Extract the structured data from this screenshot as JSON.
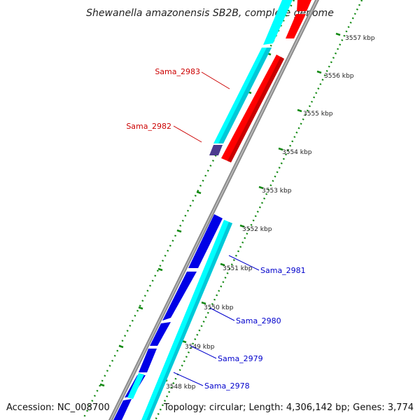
{
  "title": "Shewanella amazonensis SB2B, complete genome",
  "footer": {
    "accession": "Accession: NC_008700",
    "info": "Topology: circular; Length: 4,306,142 bp; Genes: 3,774"
  },
  "colors": {
    "forward_cds": "#0000e6",
    "forward_gene": "#00ffff",
    "reverse_cds": "#ff0000",
    "reverse_gene": "#00ffff",
    "backbone": "#888888",
    "ruler": "#138a13",
    "label_forward": "#0000cc",
    "label_reverse": "#cc0000",
    "overlap": "#4b3b8f"
  },
  "ruler_labels": [
    "3557 kbp",
    "3556 kbp",
    "3555 kbp",
    "3554 kbp",
    "3553 kbp",
    "3552 kbp",
    "3551 kbp",
    "3550 kbp",
    "3549 kbp",
    "3548 kbp"
  ],
  "gene_labels": [
    "Sama_2983",
    "Sama_2982",
    "Sama_2981",
    "Sama_2980",
    "Sama_2979",
    "Sama_2978"
  ]
}
